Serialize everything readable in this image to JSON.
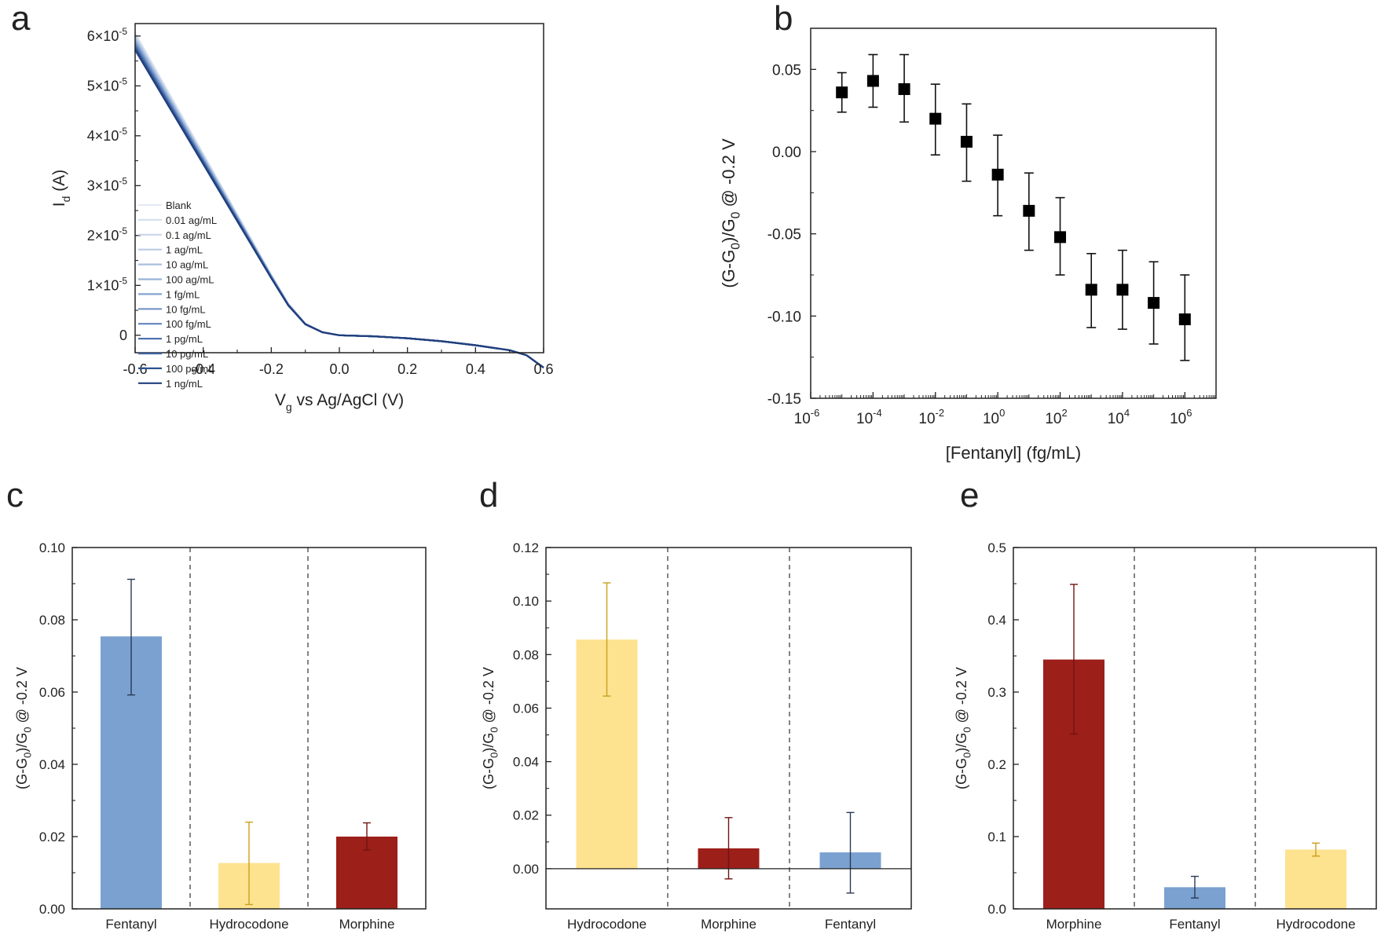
{
  "panels": {
    "a": {
      "letter": "a"
    },
    "b": {
      "letter": "b"
    },
    "c": {
      "letter": "c"
    },
    "d": {
      "letter": "d"
    },
    "e": {
      "letter": "e"
    }
  },
  "chart_data": [
    {
      "panel": "a",
      "type": "line",
      "xlabel": "V",
      "xlabel_sub": "g",
      "xlabel_rest": " vs Ag/AgCl (V)",
      "ylabel": "I",
      "ylabel_sub": "d",
      "ylabel_rest": " (A)",
      "xlim": [
        -0.6,
        0.6
      ],
      "ylim": [
        -3.5e-06,
        6.25e-05
      ],
      "xticks": [
        {
          "v": -0.6,
          "label": "-0.6"
        },
        {
          "v": -0.4,
          "label": "-0.4"
        },
        {
          "v": -0.2,
          "label": "-0.2"
        },
        {
          "v": 0.0,
          "label": "0.0"
        },
        {
          "v": 0.2,
          "label": "0.2"
        },
        {
          "v": 0.4,
          "label": "0.4"
        },
        {
          "v": 0.6,
          "label": "0.6"
        }
      ],
      "yticks": [
        {
          "v": 0,
          "base": "0",
          "exp": ""
        },
        {
          "v": 1e-05,
          "base": "1×10",
          "exp": "-5"
        },
        {
          "v": 2e-05,
          "base": "2×10",
          "exp": "-5"
        },
        {
          "v": 3e-05,
          "base": "3×10",
          "exp": "-5"
        },
        {
          "v": 4e-05,
          "base": "4×10",
          "exp": "-5"
        },
        {
          "v": 5e-05,
          "base": "5×10",
          "exp": "-5"
        },
        {
          "v": 6e-05,
          "base": "6×10",
          "exp": "-5"
        }
      ],
      "legend_position": "lower-left",
      "base_x": [
        -0.6,
        -0.5,
        -0.4,
        -0.3,
        -0.2,
        -0.15,
        -0.1,
        -0.05,
        0.0,
        0.1,
        0.2,
        0.3,
        0.4,
        0.5,
        0.55,
        0.6
      ],
      "base_y": [
        5.75e-05,
        4.6e-05,
        3.45e-05,
        2.3e-05,
        1.15e-05,
        6e-06,
        2.2e-06,
        6e-07,
        0.0,
        -2e-07,
        -6e-07,
        -1.2e-06,
        -2e-06,
        -3e-06,
        -4e-06,
        -6.5e-06
      ],
      "series": [
        {
          "name": "Blank",
          "color": "#e4ebf5",
          "scale": 1.055
        },
        {
          "name": "0.01 ag/mL",
          "color": "#d6e0ef",
          "scale": 1.05
        },
        {
          "name": "0.1 ag/mL",
          "color": "#c8d6ea",
          "scale": 1.045
        },
        {
          "name": "1 ag/mL",
          "color": "#b9cbe5",
          "scale": 1.04
        },
        {
          "name": "10 ag/mL",
          "color": "#a9bfdf",
          "scale": 1.035
        },
        {
          "name": "100 ag/mL",
          "color": "#98b2d8",
          "scale": 1.03
        },
        {
          "name": "1 fg/mL",
          "color": "#85a3cf",
          "scale": 1.025
        },
        {
          "name": "10 fg/mL",
          "color": "#7394c6",
          "scale": 1.02
        },
        {
          "name": "100 fg/mL",
          "color": "#6184bc",
          "scale": 1.015
        },
        {
          "name": "1 pg/mL",
          "color": "#4f73b0",
          "scale": 1.01
        },
        {
          "name": "10 pg/mL",
          "color": "#3e62a2",
          "scale": 1.005
        },
        {
          "name": "100 pg/mL",
          "color": "#2e5192",
          "scale": 1.0
        },
        {
          "name": "1 ng/mL",
          "color": "#213f7c",
          "scale": 0.995
        }
      ]
    },
    {
      "panel": "b",
      "type": "scatter",
      "xlabel": "[Fentanyl] (fg/mL)",
      "ylabel": "(G-G",
      "ylabel_sub": "0",
      "ylabel_mid": ")/G",
      "ylabel_sub2": "0",
      "ylabel_rest": " @ -0.2 V",
      "xscale": "log",
      "xlim_exp": [
        -6,
        7
      ],
      "ylim": [
        -0.15,
        0.075
      ],
      "xticks": [
        {
          "exp": -6,
          "label": "10",
          "sup": "-6"
        },
        {
          "exp": -4,
          "label": "10",
          "sup": "-4"
        },
        {
          "exp": -2,
          "label": "10",
          "sup": "-2"
        },
        {
          "exp": 0,
          "label": "10",
          "sup": "0"
        },
        {
          "exp": 2,
          "label": "10",
          "sup": "2"
        },
        {
          "exp": 4,
          "label": "10",
          "sup": "4"
        },
        {
          "exp": 6,
          "label": "10",
          "sup": "6"
        }
      ],
      "yticks": [
        {
          "v": -0.15,
          "label": "-0.15"
        },
        {
          "v": -0.1,
          "label": "-0.10"
        },
        {
          "v": -0.05,
          "label": "-0.05"
        },
        {
          "v": 0.0,
          "label": "0.00"
        },
        {
          "v": 0.05,
          "label": "0.05"
        }
      ],
      "points": [
        {
          "x_exp": -5,
          "y": 0.036,
          "lo": 0.024,
          "hi": 0.048
        },
        {
          "x_exp": -4,
          "y": 0.043,
          "lo": 0.027,
          "hi": 0.059
        },
        {
          "x_exp": -3,
          "y": 0.038,
          "lo": 0.018,
          "hi": 0.059
        },
        {
          "x_exp": -2,
          "y": 0.02,
          "lo": -0.002,
          "hi": 0.041
        },
        {
          "x_exp": -1,
          "y": 0.006,
          "lo": -0.018,
          "hi": 0.029
        },
        {
          "x_exp": 0,
          "y": -0.014,
          "lo": -0.039,
          "hi": 0.01
        },
        {
          "x_exp": 1,
          "y": -0.036,
          "lo": -0.06,
          "hi": -0.013
        },
        {
          "x_exp": 2,
          "y": -0.052,
          "lo": -0.075,
          "hi": -0.028
        },
        {
          "x_exp": 3,
          "y": -0.084,
          "lo": -0.107,
          "hi": -0.062
        },
        {
          "x_exp": 4,
          "y": -0.084,
          "lo": -0.108,
          "hi": -0.06
        },
        {
          "x_exp": 5,
          "y": -0.092,
          "lo": -0.117,
          "hi": -0.067
        },
        {
          "x_exp": 6,
          "y": -0.102,
          "lo": -0.127,
          "hi": -0.075
        }
      ]
    },
    {
      "panel": "c",
      "type": "bar",
      "ylabel": "(G-G",
      "ylabel_sub": "0",
      "ylabel_mid": ")/G",
      "ylabel_sub2": "0",
      "ylabel_rest": " @ -0.2 V",
      "ylim": [
        0,
        0.1
      ],
      "yticks": [
        {
          "v": 0,
          "label": "0.00"
        },
        {
          "v": 0.02,
          "label": "0.02"
        },
        {
          "v": 0.04,
          "label": "0.04"
        },
        {
          "v": 0.06,
          "label": "0.06"
        },
        {
          "v": 0.08,
          "label": "0.08"
        },
        {
          "v": 0.1,
          "label": "0.10"
        }
      ],
      "categories": [
        "Fentanyl",
        "Hydrocodone",
        "Morphine"
      ],
      "values": [
        0.0754,
        0.0127,
        0.02
      ],
      "err_lo": [
        0.0592,
        0.0012,
        0.0163
      ],
      "err_hi": [
        0.0912,
        0.024,
        0.0238
      ],
      "colors": [
        "#7ba1d1",
        "#fde28f",
        "#9c1f1a"
      ],
      "errcolors": [
        "#2a3a55",
        "#c9a020",
        "#6e1510"
      ]
    },
    {
      "panel": "d",
      "type": "bar",
      "ylabel": "(G-G",
      "ylabel_sub": "0",
      "ylabel_mid": ")/G",
      "ylabel_sub2": "0",
      "ylabel_rest": " @ -0.2 V",
      "ylim": [
        -0.015,
        0.12
      ],
      "zero_line": true,
      "yticks": [
        {
          "v": 0,
          "label": "0.00"
        },
        {
          "v": 0.02,
          "label": "0.02"
        },
        {
          "v": 0.04,
          "label": "0.04"
        },
        {
          "v": 0.06,
          "label": "0.06"
        },
        {
          "v": 0.08,
          "label": "0.08"
        },
        {
          "v": 0.1,
          "label": "0.10"
        },
        {
          "v": 0.12,
          "label": "0.12"
        }
      ],
      "categories": [
        "Hydrocodone",
        "Morphine",
        "Fentanyl"
      ],
      "values": [
        0.0856,
        0.0076,
        0.0061
      ],
      "err_lo": [
        0.0645,
        -0.0038,
        -0.0091
      ],
      "err_hi": [
        0.1068,
        0.0191,
        0.021
      ],
      "colors": [
        "#fde28f",
        "#9c1f1a",
        "#7ba1d1"
      ],
      "errcolors": [
        "#c9a020",
        "#6e1510",
        "#2a3a55"
      ]
    },
    {
      "panel": "e",
      "type": "bar",
      "ylabel": "(G-G",
      "ylabel_sub": "0",
      "ylabel_mid": ")/G",
      "ylabel_sub2": "0",
      "ylabel_rest": " @ -0.2 V",
      "ylim": [
        0,
        0.5
      ],
      "yticks": [
        {
          "v": 0,
          "label": "0.0"
        },
        {
          "v": 0.1,
          "label": "0.1"
        },
        {
          "v": 0.2,
          "label": "0.2"
        },
        {
          "v": 0.3,
          "label": "0.3"
        },
        {
          "v": 0.4,
          "label": "0.4"
        },
        {
          "v": 0.5,
          "label": "0.5"
        }
      ],
      "categories": [
        "Morphine",
        "Fentanyl",
        "Hydrocodone"
      ],
      "values": [
        0.345,
        0.03,
        0.082
      ],
      "err_lo": [
        0.242,
        0.015,
        0.073
      ],
      "err_hi": [
        0.449,
        0.045,
        0.091
      ],
      "colors": [
        "#9c1f1a",
        "#7ba1d1",
        "#fde28f"
      ],
      "errcolors": [
        "#6e1510",
        "#2a3a55",
        "#c9a020"
      ]
    }
  ]
}
